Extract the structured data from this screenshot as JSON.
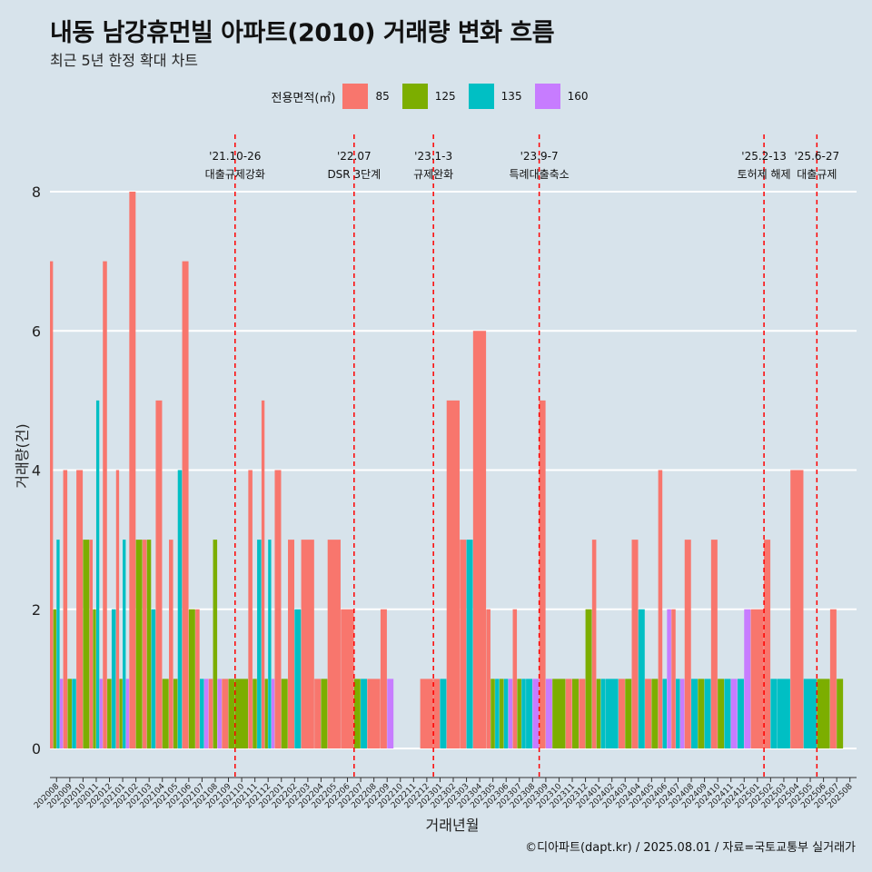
{
  "title": "내동 남강휴먼빌 아파트(2010) 거래량 변화 흐름",
  "subtitle": "최근 5년 한정 확대 차트",
  "caption": "©디아파트(dapt.kr) / 2025.08.01 / 자료=국토교통부 실거래가",
  "legend": {
    "title": "전용면적(㎡)",
    "items": [
      {
        "label": "85",
        "color": "#F8766D"
      },
      {
        "label": "125",
        "color": "#7CAE00"
      },
      {
        "label": "135",
        "color": "#00BFC4"
      },
      {
        "label": "160",
        "color": "#C77CFF"
      }
    ]
  },
  "chart_data": {
    "type": "bar",
    "xlabel": "거래년월",
    "ylabel": "거래량(건)",
    "ylim": [
      0,
      8
    ],
    "yticks": [
      0,
      2,
      4,
      6,
      8
    ],
    "grid": "horizontal",
    "legend_position": "top",
    "categories": [
      "202008",
      "202009",
      "202010",
      "202011",
      "202012",
      "202101",
      "202102",
      "202103",
      "202104",
      "202105",
      "202106",
      "202107",
      "202108",
      "202109",
      "202110",
      "202111",
      "202112",
      "202201",
      "202202",
      "202203",
      "202204",
      "202205",
      "202206",
      "202207",
      "202208",
      "202209",
      "202210",
      "202211",
      "202212",
      "202301",
      "202302",
      "202303",
      "202304",
      "202305",
      "202306",
      "202307",
      "202308",
      "202309",
      "202310",
      "202311",
      "202312",
      "202401",
      "202402",
      "202403",
      "202404",
      "202405",
      "202406",
      "202407",
      "202408",
      "202409",
      "202410",
      "202411",
      "202412",
      "202501",
      "202502",
      "202503",
      "202504",
      "202505",
      "202506",
      "202507",
      "202508"
    ],
    "series": [
      {
        "name": "85",
        "color": "#F8766D",
        "values": [
          7,
          4,
          4,
          3,
          7,
          4,
          8,
          3,
          5,
          3,
          7,
          2,
          1,
          1,
          null,
          4,
          5,
          4,
          3,
          3,
          1,
          3,
          2,
          null,
          1,
          2,
          null,
          null,
          1,
          1,
          5,
          3,
          6,
          2,
          null,
          2,
          null,
          5,
          null,
          1,
          1,
          3,
          null,
          1,
          3,
          1,
          4,
          2,
          3,
          null,
          3,
          null,
          null,
          2,
          3,
          null,
          4,
          null,
          null,
          2,
          null
        ]
      },
      {
        "name": "125",
        "color": "#7CAE00",
        "values": [
          2,
          1,
          3,
          2,
          1,
          1,
          3,
          3,
          1,
          1,
          2,
          null,
          3,
          1,
          1,
          1,
          1,
          1,
          null,
          null,
          1,
          null,
          null,
          1,
          null,
          null,
          null,
          null,
          null,
          null,
          null,
          null,
          null,
          1,
          1,
          1,
          null,
          null,
          1,
          1,
          2,
          1,
          null,
          1,
          null,
          1,
          null,
          null,
          null,
          1,
          1,
          null,
          null,
          null,
          null,
          null,
          null,
          null,
          1,
          1,
          null
        ]
      },
      {
        "name": "135",
        "color": "#00BFC4",
        "values": [
          3,
          1,
          null,
          5,
          2,
          3,
          null,
          2,
          null,
          4,
          null,
          1,
          null,
          null,
          null,
          3,
          3,
          null,
          2,
          null,
          null,
          null,
          null,
          1,
          null,
          null,
          null,
          null,
          null,
          1,
          null,
          3,
          null,
          1,
          1,
          1,
          1,
          null,
          null,
          null,
          null,
          1,
          1,
          null,
          2,
          null,
          1,
          1,
          1,
          1,
          null,
          1,
          1,
          null,
          1,
          1,
          null,
          1,
          null,
          null,
          null
        ]
      },
      {
        "name": "160",
        "color": "#C77CFF",
        "values": [
          1,
          null,
          null,
          1,
          null,
          1,
          null,
          null,
          null,
          null,
          null,
          1,
          1,
          null,
          null,
          null,
          1,
          null,
          null,
          null,
          null,
          null,
          null,
          null,
          null,
          1,
          null,
          null,
          null,
          null,
          null,
          null,
          null,
          null,
          1,
          null,
          1,
          1,
          null,
          null,
          null,
          null,
          null,
          null,
          null,
          null,
          2,
          1,
          null,
          null,
          null,
          1,
          2,
          null,
          null,
          null,
          null,
          null,
          null,
          null,
          null
        ]
      }
    ],
    "events": [
      {
        "date": "'21.10-26",
        "label": "대출규제강화",
        "category": "202110"
      },
      {
        "date": "'22.07",
        "label": "DSR 3단계",
        "category": "202207"
      },
      {
        "date": "'23.1-3",
        "label": "규제완화",
        "category": "202301"
      },
      {
        "date": "'23.9-7",
        "label": "특례대출축소",
        "category": "202309"
      },
      {
        "date": "'25.2-13",
        "label": "토허제 해제",
        "category": "202502"
      },
      {
        "date": "'25.6-27",
        "label": "대출규제",
        "category": "202506"
      }
    ]
  }
}
